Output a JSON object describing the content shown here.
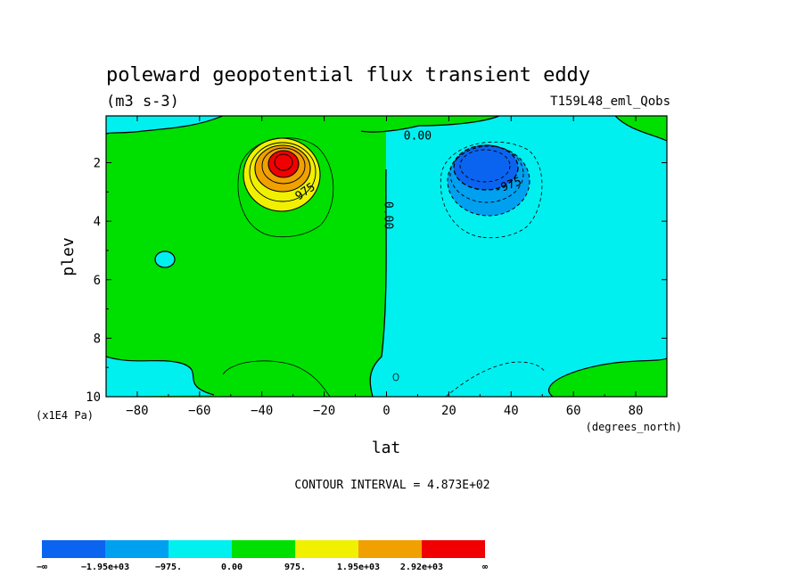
{
  "chart_data": {
    "type": "heatmap",
    "title": "poleward geopotential flux transient eddy",
    "units": "(m3 s-3)",
    "experiment": "T159L48_eml_Qobs",
    "xlabel": "lat",
    "xunits": "(degrees_north)",
    "ylabel": "plev",
    "yunits": "(x1E4 Pa)",
    "xlim": [
      -90,
      90
    ],
    "ylim": [
      10,
      0.4
    ],
    "xticks": [
      -80,
      -60,
      -40,
      -20,
      0,
      20,
      40,
      60,
      80
    ],
    "xtick_labels": [
      "−80",
      "−60",
      "−40",
      "−20",
      "0",
      "20",
      "40",
      "60",
      "80"
    ],
    "yticks": [
      2,
      4,
      6,
      8,
      10
    ],
    "ytick_labels": [
      "2",
      "4",
      "6",
      "8",
      "10"
    ],
    "contour_interval_text": "CONTOUR INTERVAL = 4.873E+02",
    "contour_interval": 487.3,
    "contour_labels": [
      {
        "text": "0.00",
        "lat": 10,
        "plev": 1.1,
        "rotate": 0
      },
      {
        "text": "0.00",
        "lat": 0.5,
        "plev": 3.8,
        "rotate": 90
      },
      {
        "text": "975",
        "lat": -26,
        "plev": 3.0,
        "rotate": -35
      },
      {
        "text": "-975",
        "lat": 39,
        "plev": 2.8,
        "rotate": -20
      }
    ],
    "features": [
      {
        "name": "positive-maximum",
        "lat": -34,
        "plev": 1.8,
        "value_min": 2920
      },
      {
        "name": "negative-minimum",
        "lat": 32,
        "plev": 1.9,
        "value_max": -1950
      }
    ],
    "colorbar": {
      "levels": [
        "−∞",
        "−1.95e+03",
        "−975.",
        "0.00",
        "975.",
        "1.95e+03",
        "2.92e+03",
        "∞"
      ],
      "colors": [
        "#0a64f0",
        "#00a0f0",
        "#00f0f0",
        "#00e000",
        "#f0f000",
        "#f0a000",
        "#f00000"
      ]
    }
  }
}
